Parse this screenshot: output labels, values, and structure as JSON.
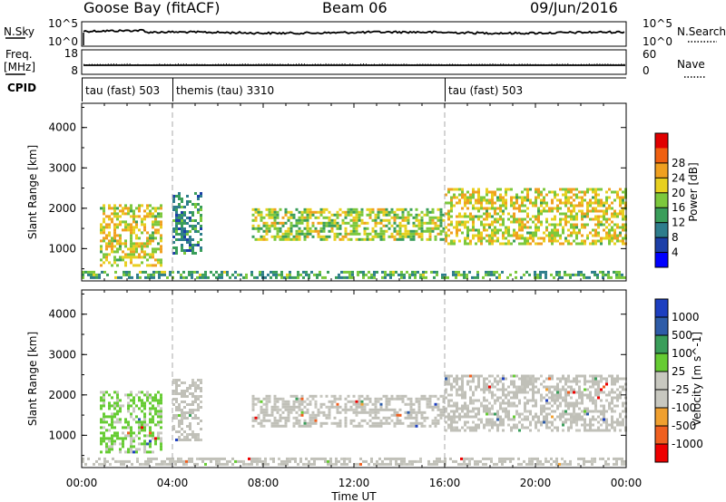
{
  "header": {
    "station": "Goose Bay (fitACF)",
    "beam": "Beam 06",
    "date": "09/Jun/2016"
  },
  "strip_labels": {
    "nsky": "N.Sky",
    "nsky_ticks": [
      "10^5",
      "10^0"
    ],
    "nsearch": "N.Search",
    "nsearch_ticks": [
      "10^5",
      "10^0"
    ],
    "freq_line1": "Freq.",
    "freq_line2": "[MHz]",
    "freq_ticks": [
      "18",
      "8"
    ],
    "nave": "Nave",
    "nave_ticks": [
      "60",
      "0"
    ],
    "cpid": "CPID"
  },
  "cpid_segments": [
    {
      "label": "tau (fast) 503",
      "start_hour": 0
    },
    {
      "label": "themis (tau) 3310",
      "start_hour": 4
    },
    {
      "label": "tau (fast) 503",
      "start_hour": 16
    }
  ],
  "x_axis": {
    "title": "Time UT",
    "range_hours": [
      0,
      24
    ],
    "ticks": [
      "00:00",
      "04:00",
      "08:00",
      "12:00",
      "16:00",
      "20:00",
      "00:00"
    ]
  },
  "colors": {
    "power_scale": [
      "#0000ff",
      "#1c3fa8",
      "#2e7d8c",
      "#3a9e5a",
      "#7cc83c",
      "#e8d020",
      "#f0a020",
      "#f06010",
      "#e00000"
    ],
    "velocity_scale": [
      "#ee0000",
      "#f06020",
      "#f0a030",
      "#c8c8c0",
      "#c8c8c0",
      "#66cc33",
      "#3a9e5a",
      "#2e5ca8",
      "#1d3fc0"
    ],
    "ground_scatter": "#c0c0b8"
  },
  "chart_data": [
    {
      "type": "heatmap",
      "title": "Power",
      "ylabel": "Slant Range [km]",
      "ylim": [
        200,
        4600
      ],
      "yticks": [
        "1000",
        "2000",
        "3000",
        "4000"
      ],
      "colorbar": {
        "label": "Power [dB]",
        "ticks": [
          "4",
          "8",
          "12",
          "16",
          "20",
          "24",
          "28"
        ],
        "range": [
          0,
          30
        ]
      },
      "regions": [
        {
          "t_start": 0.8,
          "t_end": 3.5,
          "range_min": 600,
          "range_max": 2100,
          "value": 18
        },
        {
          "t_start": 4.0,
          "t_end": 5.3,
          "range_min": 900,
          "range_max": 2400,
          "value": 10
        },
        {
          "t_start": 7.5,
          "t_end": 16.0,
          "range_min": 1200,
          "range_max": 2000,
          "value": 16
        },
        {
          "t_start": 16.0,
          "t_end": 24.0,
          "range_min": 1100,
          "range_max": 2500,
          "value": 18
        },
        {
          "t_start": 0.0,
          "t_end": 24.0,
          "range_min": 250,
          "range_max": 450,
          "value": 12
        }
      ]
    },
    {
      "type": "heatmap",
      "title": "Velocity",
      "ylabel": "Slant Range [km]",
      "ylim": [
        200,
        4600
      ],
      "yticks": [
        "1000",
        "2000",
        "3000",
        "4000"
      ],
      "colorbar": {
        "label": "Velocity [m s^-1]",
        "ticks": [
          "1000",
          "500",
          "100",
          "25",
          "-25",
          "-100",
          "-500",
          "-1000"
        ],
        "range": [
          -1200,
          1200
        ]
      },
      "regions": [
        {
          "t_start": 0.8,
          "t_end": 3.5,
          "range_min": 600,
          "range_max": 2100,
          "value": 150
        },
        {
          "t_start": 4.0,
          "t_end": 5.3,
          "range_min": 900,
          "range_max": 2400,
          "value": 0
        },
        {
          "t_start": 7.5,
          "t_end": 16.0,
          "range_min": 1200,
          "range_max": 2000,
          "value": 0
        },
        {
          "t_start": 16.0,
          "t_end": 24.0,
          "range_min": 1100,
          "range_max": 2500,
          "value": 0
        },
        {
          "t_start": 0.0,
          "t_end": 24.0,
          "range_min": 250,
          "range_max": 450,
          "value": 0
        }
      ]
    }
  ]
}
